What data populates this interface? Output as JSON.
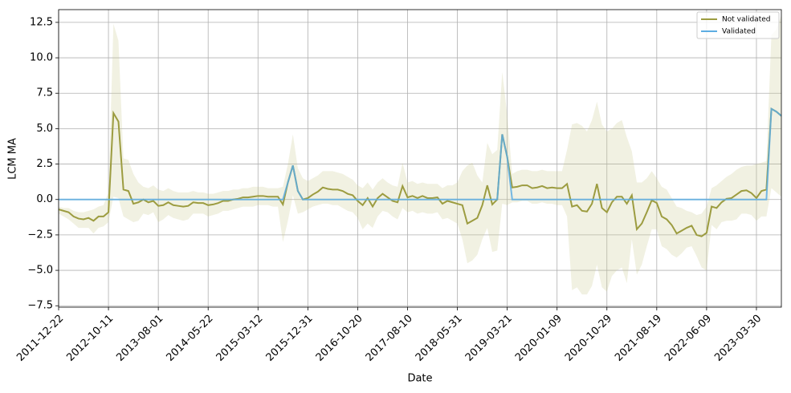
{
  "chart_data": {
    "type": "line",
    "x_label": "Date",
    "y_label": "LCM MA",
    "grid": true,
    "legend": "upper right",
    "ylim": [
      -7.6,
      13.4
    ],
    "yticks": [
      {
        "value": -7.5,
        "label": "−7.5"
      },
      {
        "value": -5,
        "label": "−5.0"
      },
      {
        "value": -2.5,
        "label": "−2.5"
      },
      {
        "value": 0,
        "label": "0.0"
      },
      2.5,
      {
        "value": 5,
        "label": "5.0"
      },
      7.5,
      {
        "value": 10,
        "label": "10.0"
      },
      12.5
    ],
    "categories": [
      "2011-12-22",
      null,
      null,
      null,
      null,
      null,
      null,
      null,
      null,
      null,
      "2012-10-11",
      null,
      null,
      null,
      null,
      null,
      null,
      null,
      null,
      null,
      "2013-08-01",
      null,
      null,
      null,
      null,
      null,
      null,
      null,
      null,
      null,
      "2014-05-22",
      null,
      null,
      null,
      null,
      null,
      null,
      null,
      null,
      null,
      "2015-03-12",
      null,
      null,
      null,
      null,
      null,
      null,
      null,
      null,
      null,
      "2015-12-31",
      null,
      null,
      null,
      null,
      null,
      null,
      null,
      null,
      null,
      "2016-10-20",
      null,
      null,
      null,
      null,
      null,
      null,
      null,
      null,
      null,
      "2017-08-10",
      null,
      null,
      null,
      null,
      null,
      null,
      null,
      null,
      null,
      "2018-05-31",
      null,
      null,
      null,
      null,
      null,
      null,
      null,
      null,
      null,
      "2019-03-21",
      null,
      null,
      null,
      null,
      null,
      null,
      null,
      null,
      null,
      "2020-01-09",
      null,
      null,
      null,
      null,
      null,
      null,
      null,
      null,
      null,
      "2020-10-29",
      null,
      null,
      null,
      null,
      null,
      null,
      null,
      null,
      null,
      "2021-08-19",
      null,
      null,
      null,
      null,
      null,
      null,
      null,
      null,
      null,
      "2022-06-09",
      null,
      null,
      null,
      null,
      null,
      null,
      null,
      null,
      null,
      "2023-03-30",
      null,
      null,
      null,
      null,
      null
    ],
    "series": [
      {
        "name": "Not validated",
        "color": "#9c9c40",
        "band_color": "#c8c88a",
        "values": [
          -0.7,
          -0.8,
          -0.9,
          -1.2,
          -1.35,
          -1.4,
          -1.3,
          -1.5,
          -1.2,
          -1.2,
          -0.9,
          6.1,
          5.5,
          0.7,
          0.6,
          -0.3,
          -0.2,
          0.0,
          -0.2,
          -0.1,
          -0.45,
          -0.4,
          -0.2,
          -0.4,
          -0.45,
          -0.5,
          -0.45,
          -0.2,
          -0.25,
          -0.25,
          -0.4,
          -0.35,
          -0.25,
          -0.1,
          -0.1,
          0.0,
          0.05,
          0.15,
          0.15,
          0.2,
          0.25,
          0.25,
          0.2,
          0.2,
          0.2,
          -0.35,
          1.2,
          2.4,
          0.6,
          0.0,
          0.1,
          0.35,
          0.55,
          0.85,
          0.75,
          0.7,
          0.7,
          0.6,
          0.4,
          0.3,
          -0.1,
          -0.4,
          0.1,
          -0.5,
          0.1,
          0.4,
          0.15,
          -0.1,
          -0.2,
          0.95,
          0.15,
          0.25,
          0.1,
          0.25,
          0.1,
          0.1,
          0.15,
          -0.3,
          -0.1,
          -0.2,
          -0.3,
          -0.4,
          -1.7,
          -1.5,
          -1.3,
          -0.4,
          1.0,
          -0.35,
          0.0,
          4.6,
          3.0,
          0.85,
          0.9,
          1.0,
          1.0,
          0.8,
          0.85,
          0.95,
          0.8,
          0.85,
          0.8,
          0.8,
          1.1,
          -0.5,
          -0.4,
          -0.8,
          -0.85,
          -0.3,
          1.1,
          -0.6,
          -0.9,
          -0.2,
          0.2,
          0.2,
          -0.3,
          0.3,
          -2.1,
          -1.7,
          -0.9,
          -0.05,
          -0.25,
          -1.2,
          -1.4,
          -1.8,
          -2.4,
          -2.2,
          -2.0,
          -1.85,
          -2.5,
          -2.6,
          -2.35,
          -0.5,
          -0.6,
          -0.2,
          0.05,
          0.1,
          0.35,
          0.6,
          0.65,
          0.45,
          0.1,
          0.6,
          0.7,
          6.4,
          6.2,
          5.9
        ],
        "upper": [
          -0.5,
          -0.6,
          -0.6,
          -0.8,
          -0.9,
          -0.9,
          -0.8,
          -0.7,
          -0.5,
          -0.4,
          0.5,
          12.4,
          11.2,
          2.9,
          2.8,
          1.8,
          1.2,
          0.9,
          0.8,
          1.0,
          0.7,
          0.6,
          0.8,
          0.6,
          0.5,
          0.5,
          0.5,
          0.6,
          0.5,
          0.5,
          0.4,
          0.4,
          0.5,
          0.6,
          0.6,
          0.7,
          0.7,
          0.8,
          0.8,
          0.9,
          0.9,
          0.9,
          0.8,
          0.8,
          0.8,
          0.9,
          2.5,
          4.6,
          2.2,
          1.5,
          1.3,
          1.5,
          1.7,
          2.0,
          2.0,
          2.0,
          1.9,
          1.8,
          1.6,
          1.4,
          1.0,
          0.8,
          1.2,
          0.7,
          1.2,
          1.5,
          1.2,
          1.0,
          0.9,
          2.6,
          1.2,
          1.3,
          1.1,
          1.2,
          1.1,
          1.1,
          1.1,
          0.8,
          1.0,
          1.0,
          1.2,
          2.0,
          2.4,
          2.6,
          1.7,
          1.2,
          4.0,
          3.2,
          3.5,
          9.0,
          6.0,
          1.8,
          2.0,
          2.1,
          2.1,
          2.0,
          2.0,
          2.1,
          2.0,
          2.0,
          2.0,
          2.0,
          3.5,
          5.3,
          5.4,
          5.2,
          4.8,
          5.6,
          6.9,
          5.3,
          4.8,
          5.0,
          5.4,
          5.6,
          4.4,
          3.4,
          1.2,
          1.2,
          1.5,
          2.0,
          1.5,
          0.9,
          0.7,
          0.1,
          -0.5,
          -0.6,
          -0.8,
          -0.9,
          -1.1,
          -1.0,
          -0.5,
          0.8,
          1.0,
          1.3,
          1.6,
          1.8,
          2.1,
          2.3,
          2.4,
          2.4,
          2.5,
          2.6,
          2.7,
          11.6,
          12.0,
          13.0
        ],
        "lower": [
          -1.0,
          -1.2,
          -1.4,
          -1.7,
          -2.0,
          -2.0,
          -2.0,
          -2.4,
          -2.0,
          -1.9,
          -1.6,
          0.2,
          0.1,
          -1.2,
          -1.4,
          -1.6,
          -1.5,
          -1.0,
          -1.1,
          -0.9,
          -1.6,
          -1.4,
          -1.1,
          -1.3,
          -1.4,
          -1.5,
          -1.4,
          -1.0,
          -1.0,
          -1.0,
          -1.2,
          -1.1,
          -1.0,
          -0.8,
          -0.8,
          -0.7,
          -0.6,
          -0.5,
          -0.5,
          -0.5,
          -0.4,
          -0.4,
          -0.4,
          -0.5,
          -0.5,
          -3.0,
          -1.5,
          0.3,
          -1.0,
          -0.9,
          -0.7,
          -0.5,
          -0.4,
          -0.3,
          -0.3,
          -0.4,
          -0.4,
          -0.6,
          -0.8,
          -0.9,
          -1.3,
          -2.1,
          -1.7,
          -2.0,
          -1.2,
          -0.8,
          -0.9,
          -1.2,
          -1.4,
          -0.6,
          -0.9,
          -0.8,
          -1.0,
          -0.9,
          -1.0,
          -1.0,
          -0.9,
          -1.4,
          -1.3,
          -1.5,
          -1.7,
          -2.8,
          -4.5,
          -4.3,
          -3.9,
          -2.8,
          -2.0,
          -3.7,
          -3.6,
          -0.3,
          -0.4,
          -0.2,
          -0.2,
          -0.1,
          -0.1,
          -0.3,
          -0.3,
          -0.2,
          -0.3,
          -0.3,
          -0.4,
          -0.4,
          -1.2,
          -6.4,
          -6.2,
          -6.7,
          -6.7,
          -6.1,
          -4.6,
          -6.2,
          -6.5,
          -5.4,
          -5.0,
          -4.8,
          -5.9,
          -2.8,
          -5.3,
          -4.6,
          -3.3,
          -2.1,
          -2.1,
          -3.3,
          -3.5,
          -3.9,
          -4.1,
          -3.8,
          -3.4,
          -3.3,
          -4.0,
          -4.8,
          -5.0,
          -1.8,
          -2.1,
          -1.6,
          -1.5,
          -1.5,
          -1.4,
          -1.0,
          -1.0,
          -1.1,
          -1.5,
          -1.2,
          -1.2,
          0.8,
          0.5,
          0.2
        ]
      },
      {
        "name": "Validated",
        "color": "#5dade2",
        "values": [
          0,
          0,
          0,
          0,
          0,
          0,
          0,
          0,
          0,
          0,
          0,
          0,
          0,
          0,
          0,
          0,
          0,
          0,
          0,
          0,
          0,
          0,
          0,
          0,
          0,
          0,
          0,
          0,
          0,
          0,
          0,
          0,
          0,
          0,
          0,
          0,
          0,
          0,
          0,
          0,
          0,
          0,
          0,
          0,
          0,
          0,
          1.2,
          2.4,
          0.6,
          0,
          0,
          0,
          0,
          0,
          0,
          0,
          0,
          0,
          0,
          0,
          0,
          0,
          0,
          0,
          0,
          0,
          0,
          0,
          0,
          0,
          0,
          0,
          0,
          0,
          0,
          0,
          0,
          0,
          0,
          0,
          0,
          0,
          0,
          0,
          0,
          0,
          0,
          0,
          0,
          4.6,
          3.0,
          0,
          0,
          0,
          0,
          0,
          0,
          0,
          0,
          0,
          0,
          0,
          0,
          0,
          0,
          0,
          0,
          0,
          0,
          0,
          0,
          0,
          0,
          0,
          0,
          0,
          0,
          0,
          0,
          0,
          0,
          0,
          0,
          0,
          0,
          0,
          0,
          0,
          0,
          0,
          0,
          0,
          0,
          0,
          0,
          0,
          0,
          0,
          0,
          0,
          0,
          0,
          0,
          6.4,
          6.2,
          5.9
        ]
      }
    ]
  }
}
